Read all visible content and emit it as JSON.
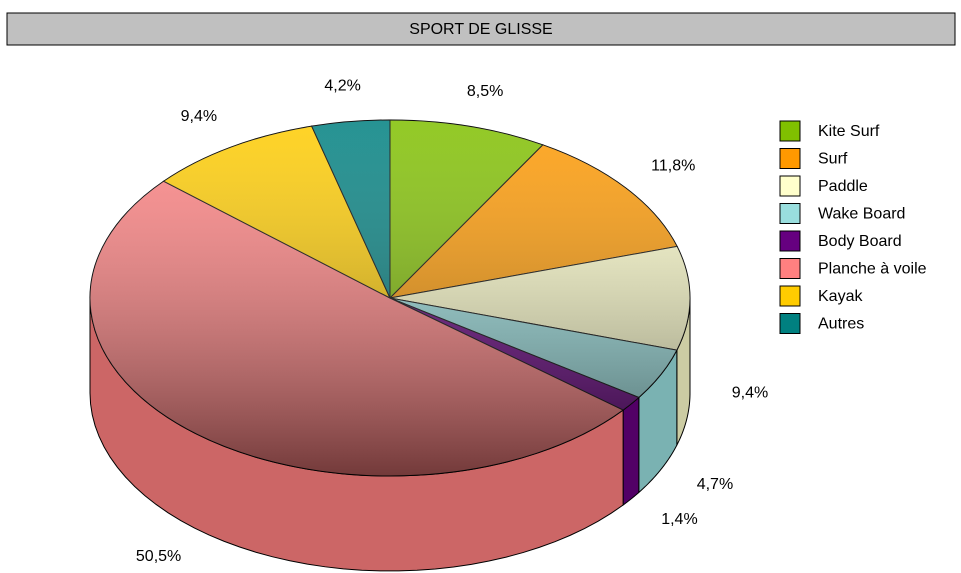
{
  "chart_data": {
    "type": "pie",
    "title": "SPORT DE GLISSE",
    "categories": [
      "Kite Surf",
      "Surf",
      "Paddle",
      "Wake Board",
      "Body Board",
      "Planche à voile",
      "Kayak",
      "Autres"
    ],
    "values": [
      8.5,
      11.8,
      9.4,
      4.7,
      1.4,
      50.5,
      9.4,
      4.2
    ],
    "value_labels": [
      "8,5%",
      "11,8%",
      "9,4%",
      "4,7%",
      "1,4%",
      "50,5%",
      "9,4%",
      "4,2%"
    ],
    "colors": [
      "#80c000",
      "#ff9900",
      "#ffffcc",
      "#99dede",
      "#660080",
      "#ff8080",
      "#ffcc00",
      "#008080"
    ],
    "legend": "right"
  }
}
